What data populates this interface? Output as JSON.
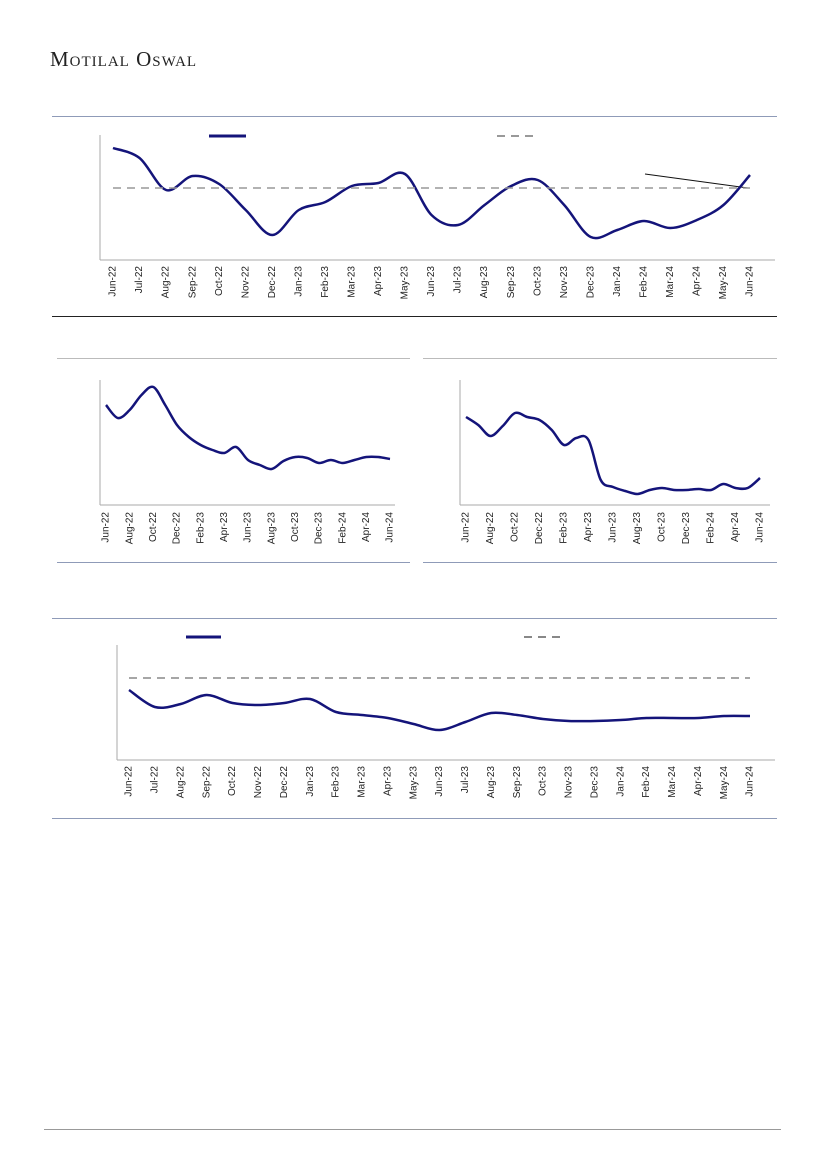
{
  "header": {
    "brand": "Motilal Oswal"
  },
  "charts": [
    {
      "type": "line",
      "categories": [
        "Jun-22",
        "Jul-22",
        "Aug-22",
        "Sep-22",
        "Oct-22",
        "Nov-22",
        "Dec-22",
        "Jan-23",
        "Feb-23",
        "Mar-23",
        "Apr-23",
        "May-23",
        "Jun-23",
        "Jul-23",
        "Aug-23",
        "Sep-23",
        "Oct-23",
        "Nov-23",
        "Dec-23",
        "Jan-24",
        "Feb-24",
        "Mar-24",
        "Apr-24",
        "May-24",
        "Jun-24"
      ],
      "ylim": [
        0,
        125
      ],
      "series": [
        {
          "color": "#14147a",
          "values": [
            112,
            102,
            70,
            84,
            76,
            50,
            25,
            50,
            58,
            74,
            77,
            86,
            45,
            35,
            55,
            74,
            80,
            55,
            23,
            30,
            39,
            32,
            40,
            55,
            85
          ]
        },
        {
          "color": "#999999",
          "dashed": true,
          "values": [
            72,
            72,
            72,
            72,
            72,
            72,
            72,
            72,
            72,
            72,
            72,
            72,
            72,
            72,
            72,
            72,
            72,
            72,
            72,
            72,
            72,
            72,
            72,
            72,
            72
          ]
        }
      ]
    },
    {
      "type": "line",
      "categories": [
        "Jun-22",
        null,
        "Aug-22",
        null,
        "Oct-22",
        null,
        "Dec-22",
        null,
        "Feb-23",
        null,
        "Apr-23",
        null,
        "Jun-23",
        null,
        "Aug-23",
        null,
        "Oct-23",
        null,
        "Dec-23",
        null,
        "Feb-24",
        null,
        "Apr-24",
        null,
        "Jun-24"
      ],
      "ylim": [
        0,
        125
      ],
      "series": [
        {
          "color": "#14147a",
          "values": [
            100,
            87,
            95,
            110,
            118,
            100,
            80,
            68,
            60,
            55,
            52,
            58,
            45,
            40,
            36,
            44,
            48,
            47,
            42,
            45,
            42,
            45,
            48,
            48,
            46
          ]
        }
      ]
    },
    {
      "type": "line",
      "categories": [
        "Jun-22",
        null,
        "Aug-22",
        null,
        "Oct-22",
        null,
        "Dec-22",
        null,
        "Feb-23",
        null,
        "Apr-23",
        null,
        "Jun-23",
        null,
        "Aug-23",
        null,
        "Oct-23",
        null,
        "Dec-23",
        null,
        "Feb-24",
        null,
        "Apr-24",
        null,
        "Jun-24"
      ],
      "ylim": [
        0,
        125
      ],
      "series": [
        {
          "color": "#14147a",
          "values": [
            88,
            80,
            69,
            79,
            92,
            88,
            85,
            75,
            60,
            67,
            65,
            25,
            18,
            14,
            11,
            15,
            17,
            15,
            15,
            16,
            15,
            21,
            17,
            17,
            27
          ]
        }
      ]
    },
    {
      "type": "line",
      "categories": [
        "Jun-22",
        "Jul-22",
        "Aug-22",
        "Sep-22",
        "Oct-22",
        "Nov-22",
        "Dec-22",
        "Jan-23",
        "Feb-23",
        "Mar-23",
        "Apr-23",
        "May-23",
        "Jun-23",
        "Jul-23",
        "Aug-23",
        "Sep-23",
        "Oct-23",
        "Nov-23",
        "Dec-23",
        "Jan-24",
        "Feb-24",
        "Mar-24",
        "Apr-24",
        "May-24",
        "Jun-24"
      ],
      "ylim": [
        0,
        115
      ],
      "series": [
        {
          "color": "#14147a",
          "values": [
            70,
            53,
            56,
            65,
            57,
            55,
            57,
            61,
            48,
            45,
            42,
            36,
            30,
            38,
            47,
            45,
            41,
            39,
            39,
            40,
            42,
            42,
            42,
            44,
            44
          ]
        },
        {
          "color": "#888888",
          "dashed": true,
          "values": [
            82,
            82,
            82,
            82,
            82,
            82,
            82,
            82,
            82,
            82,
            82,
            82,
            82,
            82,
            82,
            82,
            82,
            82,
            82,
            82,
            82,
            82,
            82,
            82,
            82
          ]
        }
      ]
    }
  ]
}
